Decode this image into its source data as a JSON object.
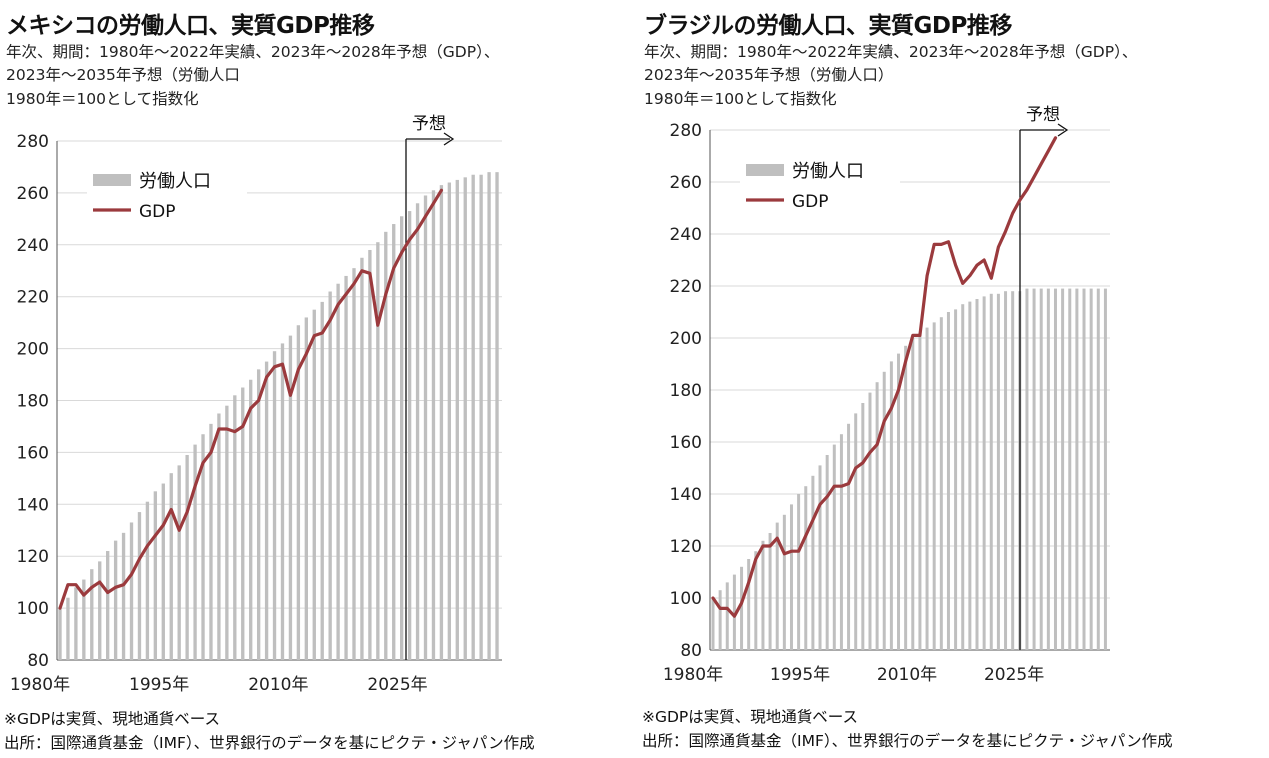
{
  "panels": [
    {
      "title": "メキシコの労働人口、実質GDP推移",
      "subtitle_lines": [
        "年次、期間：1980年～2022年実績、2023年～2028年予想（GDP）、",
        "2023年～2035年予想（労働人口",
        "1980年＝100として指数化"
      ],
      "notes": [
        "※GDPは実質、現地通貨ベース",
        "出所：国際通貨基金（IMF）、世界銀行のデータを基にピクテ・ジャパン作成"
      ]
    },
    {
      "title": "ブラジルの労働人口、実質GDP推移",
      "subtitle_lines": [
        "年次、期間：1980年～2022年実績、2023年～2028年予想（GDP）、",
        "2023年～2035年予想（労働人口）",
        "1980年＝100として指数化"
      ],
      "notes": [
        "※GDPは実質、現地通貨ベース",
        "出所：国際通貨基金（IMF）、世界銀行のデータを基にピクテ・ジャパン作成"
      ]
    }
  ],
  "chart_data": [
    {
      "type": "bar",
      "title": "メキシコの労働人口、実質GDP推移",
      "ylim": [
        80,
        280
      ],
      "y_ticks": [
        80,
        100,
        120,
        140,
        160,
        180,
        200,
        220,
        240,
        260,
        280
      ],
      "x_tick_labels": [
        "1980年",
        "1995年",
        "2010年",
        "2025年"
      ],
      "x_tick_years": [
        1980,
        1995,
        2010,
        2025
      ],
      "forecast_label": "予想",
      "forecast_start_year": 2022,
      "grid": true,
      "legend_position": "top-left",
      "series": [
        {
          "name": "労働人口",
          "kind": "bar",
          "color": "#bfbfbf",
          "years": [
            1980,
            1981,
            1982,
            1983,
            1984,
            1985,
            1986,
            1987,
            1988,
            1989,
            1990,
            1991,
            1992,
            1993,
            1994,
            1995,
            1996,
            1997,
            1998,
            1999,
            2000,
            2001,
            2002,
            2003,
            2004,
            2005,
            2006,
            2007,
            2008,
            2009,
            2010,
            2011,
            2012,
            2013,
            2014,
            2015,
            2016,
            2017,
            2018,
            2019,
            2020,
            2021,
            2022,
            2023,
            2024,
            2025,
            2026,
            2027,
            2028,
            2029,
            2030,
            2031,
            2032,
            2033,
            2034,
            2035
          ],
          "values": [
            100,
            104,
            108,
            111,
            115,
            118,
            122,
            126,
            129,
            133,
            137,
            141,
            145,
            148,
            152,
            155,
            159,
            163,
            167,
            171,
            175,
            178,
            182,
            185,
            188,
            192,
            195,
            199,
            202,
            205,
            209,
            212,
            215,
            218,
            222,
            225,
            228,
            231,
            235,
            238,
            241,
            245,
            248,
            251,
            253,
            256,
            259,
            261,
            263,
            264,
            265,
            266,
            267,
            267,
            268,
            268
          ]
        },
        {
          "name": "GDP",
          "kind": "line",
          "color": "#9b3a3d",
          "years": [
            1980,
            1981,
            1982,
            1983,
            1984,
            1985,
            1986,
            1987,
            1988,
            1989,
            1990,
            1991,
            1992,
            1993,
            1994,
            1995,
            1996,
            1997,
            1998,
            1999,
            2000,
            2001,
            2002,
            2003,
            2004,
            2005,
            2006,
            2007,
            2008,
            2009,
            2010,
            2011,
            2012,
            2013,
            2014,
            2015,
            2016,
            2017,
            2018,
            2019,
            2020,
            2021,
            2022,
            2023,
            2024,
            2025,
            2026,
            2027,
            2028
          ],
          "values": [
            100,
            109,
            109,
            105,
            108,
            110,
            106,
            108,
            109,
            113,
            119,
            124,
            128,
            132,
            138,
            130,
            137,
            147,
            156,
            160,
            169,
            169,
            168,
            170,
            177,
            180,
            189,
            193,
            194,
            182,
            192,
            198,
            205,
            206,
            211,
            217,
            221,
            225,
            230,
            229,
            209,
            221,
            231,
            237,
            242,
            246,
            251,
            256,
            261
          ]
        }
      ]
    },
    {
      "type": "bar",
      "title": "ブラジルの労働人口、実質GDP推移",
      "ylim": [
        80,
        280
      ],
      "y_ticks": [
        80,
        100,
        120,
        140,
        160,
        180,
        200,
        220,
        240,
        260,
        280
      ],
      "x_tick_labels": [
        "1980年",
        "1995年",
        "2010年",
        "2025年"
      ],
      "x_tick_years": [
        1980,
        1995,
        2010,
        2025
      ],
      "forecast_label": "予想",
      "forecast_start_year": 2022,
      "grid": true,
      "legend_position": "top-left",
      "series": [
        {
          "name": "労働人口",
          "kind": "bar",
          "color": "#bfbfbf",
          "years": [
            1980,
            1981,
            1982,
            1983,
            1984,
            1985,
            1986,
            1987,
            1988,
            1989,
            1990,
            1991,
            1992,
            1993,
            1994,
            1995,
            1996,
            1997,
            1998,
            1999,
            2000,
            2001,
            2002,
            2003,
            2004,
            2005,
            2006,
            2007,
            2008,
            2009,
            2010,
            2011,
            2012,
            2013,
            2014,
            2015,
            2016,
            2017,
            2018,
            2019,
            2020,
            2021,
            2022,
            2023,
            2024,
            2025,
            2026,
            2027,
            2028,
            2029,
            2030,
            2031,
            2032,
            2033,
            2034,
            2035
          ],
          "values": [
            100,
            103,
            106,
            109,
            112,
            115,
            118,
            122,
            125,
            129,
            132,
            136,
            140,
            143,
            147,
            151,
            155,
            159,
            163,
            167,
            171,
            175,
            179,
            183,
            187,
            191,
            194,
            197,
            200,
            202,
            204,
            206,
            208,
            210,
            211,
            213,
            214,
            215,
            216,
            217,
            217,
            218,
            218,
            218,
            219,
            219,
            219,
            219,
            219,
            219,
            219,
            219,
            219,
            219,
            219,
            219
          ]
        },
        {
          "name": "GDP",
          "kind": "line",
          "color": "#9b3a3d",
          "years": [
            1980,
            1981,
            1982,
            1983,
            1984,
            1985,
            1986,
            1987,
            1988,
            1989,
            1990,
            1991,
            1992,
            1993,
            1994,
            1995,
            1996,
            1997,
            1998,
            1999,
            2000,
            2001,
            2002,
            2003,
            2004,
            2005,
            2006,
            2007,
            2008,
            2009,
            2010,
            2011,
            2012,
            2013,
            2014,
            2015,
            2016,
            2017,
            2018,
            2019,
            2020,
            2021,
            2022,
            2023,
            2024,
            2025,
            2026,
            2027,
            2028
          ],
          "values": [
            100,
            96,
            96,
            93,
            98,
            106,
            115,
            120,
            120,
            123,
            117,
            118,
            118,
            124,
            130,
            136,
            139,
            143,
            143,
            144,
            150,
            152,
            156,
            159,
            168,
            173,
            180,
            191,
            201,
            201,
            224,
            236,
            236,
            237,
            228,
            221,
            224,
            228,
            230,
            223,
            235,
            241,
            248,
            253,
            257,
            262,
            267,
            272,
            277
          ]
        }
      ]
    }
  ]
}
